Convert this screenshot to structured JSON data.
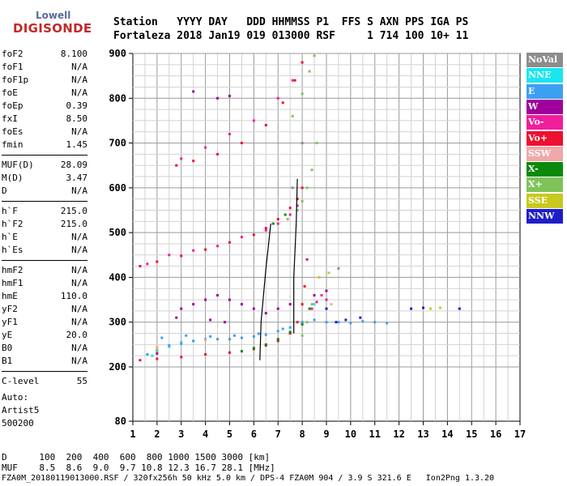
{
  "logo": {
    "brand": "Lowell",
    "product": "DIGISONDE"
  },
  "header": {
    "row1": "Station   YYYY DAY   DDD HHMMSS P1  FFS S AXN PPS IGA PS",
    "row2": "Fortaleza 2018 Jan19 019 013000 RSF     1 714 100 10+ 11"
  },
  "params": [
    {
      "group": 1,
      "label": "foF2",
      "value": "8.100"
    },
    {
      "group": 1,
      "label": "foF1",
      "value": "N/A"
    },
    {
      "group": 1,
      "label": "foF1p",
      "value": "N/A"
    },
    {
      "group": 1,
      "label": "foE",
      "value": "N/A"
    },
    {
      "group": 1,
      "label": "foEp",
      "value": "0.39"
    },
    {
      "group": 1,
      "label": "fxI",
      "value": "8.50"
    },
    {
      "group": 1,
      "label": "foEs",
      "value": "N/A"
    },
    {
      "group": 1,
      "label": "fmin",
      "value": "1.45"
    },
    {
      "group": 2,
      "label": "MUF(D)",
      "value": "28.09"
    },
    {
      "group": 2,
      "label": "M(D)",
      "value": "3.47"
    },
    {
      "group": 2,
      "label": "D",
      "value": "N/A"
    },
    {
      "group": 3,
      "label": "h`F",
      "value": "215.0"
    },
    {
      "group": 3,
      "label": "h`F2",
      "value": "215.0"
    },
    {
      "group": 3,
      "label": "h`E",
      "value": "N/A"
    },
    {
      "group": 3,
      "label": "h`Es",
      "value": "N/A"
    },
    {
      "group": 4,
      "label": "hmF2",
      "value": "N/A"
    },
    {
      "group": 4,
      "label": "hmF1",
      "value": "N/A"
    },
    {
      "group": 4,
      "label": "hmE",
      "value": "110.0"
    },
    {
      "group": 4,
      "label": "yF2",
      "value": "N/A"
    },
    {
      "group": 4,
      "label": "yF1",
      "value": "N/A"
    },
    {
      "group": 4,
      "label": "yE",
      "value": "20.0"
    },
    {
      "group": 4,
      "label": "B0",
      "value": "N/A"
    },
    {
      "group": 4,
      "label": "B1",
      "value": "N/A"
    },
    {
      "group": 5,
      "label": "C-level",
      "value": "55"
    }
  ],
  "autoscaling": {
    "line1": "Auto:",
    "line2": "Artist5",
    "line3": "500200"
  },
  "legend": [
    {
      "label": "NoVal",
      "color": "#8c8c8c"
    },
    {
      "label": "NNE",
      "color": "#19e6f0"
    },
    {
      "label": "E",
      "color": "#3ca0f0"
    },
    {
      "label": "W",
      "color": "#a0009c"
    },
    {
      "label": "Vo-",
      "color": "#f01e9c"
    },
    {
      "label": "Vo+",
      "color": "#ee1030"
    },
    {
      "label": "SSW",
      "color": "#f0a8a8"
    },
    {
      "label": "X-",
      "color": "#0a8a0a"
    },
    {
      "label": "X+",
      "color": "#7ec45a"
    },
    {
      "label": "SSE",
      "color": "#c8c81e"
    },
    {
      "label": "NNW",
      "color": "#1e1ec8"
    }
  ],
  "footer": {
    "d_row": "D      100  200  400  600  800 1000 1500 3000 [km]",
    "muf_row": "MUF    8.5  8.6  9.0  9.7 10.8 12.3 16.7 28.1 [MHz]",
    "file_row": "FZA0M_20180119013000.RSF / 320fx256h 50 kHz 5.0 km / DPS-4 FZA0M 904 / 3.9 S 321.6 E   Ion2Png 1.3.20"
  },
  "chart_data": {
    "type": "scatter",
    "title": "",
    "xlabel": "",
    "ylabel": "",
    "xlim": [
      1,
      17
    ],
    "ylim": [
      80,
      900
    ],
    "grid": true,
    "x_ticks": [
      1,
      2,
      3,
      4,
      5,
      6,
      7,
      8,
      9,
      10,
      11,
      12,
      13,
      14,
      15,
      16,
      17
    ],
    "y_ticks": [
      80,
      200,
      300,
      400,
      500,
      600,
      700,
      800,
      900
    ],
    "legend_position": "right",
    "series": [
      {
        "name": "NoVal",
        "color": "#8c8c8c",
        "points": [
          [
            8.0,
            700
          ],
          [
            7.6,
            600
          ],
          [
            9.5,
            420
          ]
        ]
      },
      {
        "name": "NNE",
        "color": "#19e6f0",
        "points": [
          [
            2.0,
            235
          ],
          [
            2.5,
            245
          ],
          [
            3.0,
            255
          ],
          [
            3.5,
            258
          ],
          [
            8.5,
            340
          ],
          [
            9.0,
            330
          ],
          [
            1.8,
            225
          ]
        ]
      },
      {
        "name": "E",
        "color": "#3ca0f0",
        "points": [
          [
            1.6,
            228
          ],
          [
            2.0,
            238
          ],
          [
            2.5,
            248
          ],
          [
            3.0,
            252
          ],
          [
            3.5,
            258
          ],
          [
            4.0,
            262
          ],
          [
            4.5,
            262
          ],
          [
            5.0,
            262
          ],
          [
            5.5,
            265
          ],
          [
            6.0,
            268
          ],
          [
            6.5,
            272
          ],
          [
            7.0,
            280
          ],
          [
            7.5,
            288
          ],
          [
            8.0,
            300
          ],
          [
            8.5,
            305
          ],
          [
            9.0,
            300
          ],
          [
            9.5,
            300
          ],
          [
            10.0,
            298
          ],
          [
            10.5,
            302
          ],
          [
            11.0,
            300
          ],
          [
            11.5,
            298
          ],
          [
            2.2,
            265
          ],
          [
            3.2,
            270
          ],
          [
            4.2,
            268
          ],
          [
            5.2,
            270
          ],
          [
            6.2,
            274
          ],
          [
            7.2,
            285
          ]
        ]
      },
      {
        "name": "W",
        "color": "#a0009c",
        "points": [
          [
            3.0,
            330
          ],
          [
            3.5,
            340
          ],
          [
            4.0,
            350
          ],
          [
            4.5,
            360
          ],
          [
            5.0,
            350
          ],
          [
            5.5,
            340
          ],
          [
            6.0,
            330
          ],
          [
            6.5,
            320
          ],
          [
            7.0,
            330
          ],
          [
            7.5,
            340
          ],
          [
            8.5,
            360
          ],
          [
            9.0,
            370
          ],
          [
            2.8,
            310
          ],
          [
            4.2,
            305
          ],
          [
            4.8,
            300
          ],
          [
            3.5,
            815
          ],
          [
            4.5,
            800
          ],
          [
            5.0,
            805
          ],
          [
            2.0,
            230
          ]
        ]
      },
      {
        "name": "Vo-",
        "color": "#f01e9c",
        "points": [
          [
            8.4,
            330
          ],
          [
            8.6,
            345
          ],
          [
            8.8,
            360
          ],
          [
            9.0,
            350
          ],
          [
            1.6,
            430
          ],
          [
            2.5,
            450
          ],
          [
            3.5,
            460
          ],
          [
            4.5,
            470
          ],
          [
            5.5,
            490
          ],
          [
            6.5,
            505
          ],
          [
            7.0,
            520
          ],
          [
            7.5,
            540
          ],
          [
            7.8,
            560
          ],
          [
            3.0,
            665
          ],
          [
            4.0,
            690
          ],
          [
            5.0,
            720
          ],
          [
            6.0,
            750
          ],
          [
            7.0,
            800
          ],
          [
            7.6,
            840
          ]
        ]
      },
      {
        "name": "Vo+",
        "color": "#ee1030",
        "points": [
          [
            1.3,
            215
          ],
          [
            2.0,
            218
          ],
          [
            3.0,
            222
          ],
          [
            4.0,
            228
          ],
          [
            5.0,
            232
          ],
          [
            6.0,
            240
          ],
          [
            6.5,
            248
          ],
          [
            7.0,
            258
          ],
          [
            7.5,
            275
          ],
          [
            7.8,
            300
          ],
          [
            8.0,
            340
          ],
          [
            8.1,
            380
          ],
          [
            8.2,
            440
          ],
          [
            1.3,
            425
          ],
          [
            2.0,
            435
          ],
          [
            3.0,
            448
          ],
          [
            4.0,
            462
          ],
          [
            5.0,
            478
          ],
          [
            6.0,
            495
          ],
          [
            6.5,
            510
          ],
          [
            7.0,
            530
          ],
          [
            7.5,
            555
          ],
          [
            7.8,
            575
          ],
          [
            8.0,
            600
          ],
          [
            2.8,
            650
          ],
          [
            3.5,
            660
          ],
          [
            4.5,
            675
          ],
          [
            5.5,
            700
          ],
          [
            6.5,
            740
          ],
          [
            7.2,
            790
          ],
          [
            7.7,
            840
          ],
          [
            8.0,
            880
          ]
        ]
      },
      {
        "name": "SSW",
        "color": "#f0a8a8",
        "points": [
          [
            2.0,
            245
          ],
          [
            4.0,
            260
          ],
          [
            9.2,
            340
          ]
        ]
      },
      {
        "name": "X-",
        "color": "#0a8a0a",
        "points": [
          [
            5.5,
            235
          ],
          [
            6.0,
            242
          ],
          [
            6.5,
            250
          ],
          [
            7.0,
            262
          ],
          [
            7.5,
            278
          ],
          [
            8.0,
            295
          ],
          [
            8.3,
            330
          ],
          [
            6.8,
            520
          ],
          [
            7.3,
            540
          ]
        ]
      },
      {
        "name": "X+",
        "color": "#7ec45a",
        "points": [
          [
            8.0,
            270
          ],
          [
            8.2,
            300
          ],
          [
            8.4,
            340
          ],
          [
            7.4,
            530
          ],
          [
            7.8,
            550
          ],
          [
            8.0,
            570
          ],
          [
            8.2,
            600
          ],
          [
            8.4,
            640
          ],
          [
            8.6,
            700
          ],
          [
            7.6,
            760
          ],
          [
            8.0,
            810
          ],
          [
            8.3,
            860
          ],
          [
            8.5,
            895
          ]
        ]
      },
      {
        "name": "SSE",
        "color": "#c8c81e",
        "points": [
          [
            9.1,
            410
          ],
          [
            8.7,
            400
          ],
          [
            13.3,
            330
          ],
          [
            13.7,
            332
          ],
          [
            2.0,
            240
          ]
        ]
      },
      {
        "name": "NNW",
        "color": "#1e1ec8",
        "points": [
          [
            9.4,
            300
          ],
          [
            9.8,
            305
          ],
          [
            10.4,
            310
          ],
          [
            12.5,
            330
          ],
          [
            13.0,
            332
          ],
          [
            14.5,
            330
          ],
          [
            9.0,
            330
          ]
        ]
      }
    ],
    "traces": [
      {
        "name": "trace-left",
        "points": [
          [
            6.25,
            215
          ],
          [
            6.3,
            300
          ],
          [
            6.5,
            420
          ],
          [
            6.7,
            520
          ]
        ]
      },
      {
        "name": "trace-right",
        "points": [
          [
            7.65,
            275
          ],
          [
            7.65,
            400
          ],
          [
            7.75,
            520
          ],
          [
            7.8,
            620
          ]
        ]
      }
    ]
  }
}
